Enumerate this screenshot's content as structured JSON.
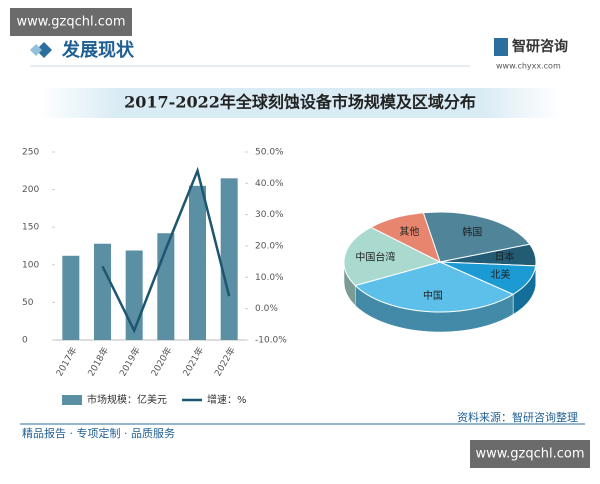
{
  "watermarks": [
    "www.gzqchl.com",
    "www.gzqchl.com"
  ],
  "header": {
    "section": "发展现状",
    "logo": "智研咨询",
    "url": "www.chyxx.com"
  },
  "title": "2017-2022年全球刻蚀设备市场规模及区域分布",
  "chart_data": [
    {
      "type": "bar",
      "categories": [
        "2017年",
        "2018年",
        "2019年",
        "2020年",
        "2021年",
        "2022年"
      ],
      "series": [
        {
          "name": "市场规模：亿美元",
          "color": "#5b8fa3",
          "values": [
            112,
            128,
            119,
            142,
            205,
            215
          ]
        },
        {
          "name": "增速：%",
          "color": "#1e5670",
          "type": "line",
          "axis": "y2",
          "values": [
            null,
            13.5,
            -7,
            19,
            44,
            4
          ]
        }
      ],
      "ylim": [
        0,
        250
      ],
      "yticks": [
        0,
        50,
        100,
        150,
        200,
        250
      ],
      "y2lim": [
        -10,
        50
      ],
      "y2ticks": [
        {
          "value": -10,
          "label": "-10.0%"
        },
        {
          "value": 0,
          "label": "0.0%"
        },
        {
          "value": 10,
          "label": "10.0%"
        },
        {
          "value": 20,
          "label": "20.0%"
        },
        {
          "value": 30,
          "label": "30.0%"
        },
        {
          "value": 40,
          "label": "40.0%"
        },
        {
          "value": 50,
          "label": "50.0%"
        }
      ]
    },
    {
      "type": "pie",
      "categories": [
        "韩国",
        "日本",
        "北美",
        "中国",
        "中国台湾",
        "其他"
      ],
      "values": [
        22,
        7,
        10,
        31,
        20,
        10
      ],
      "colors": [
        "#4f8499",
        "#225c74",
        "#1b9ad4",
        "#5cc0ea",
        "#a9d9cf",
        "#e8856f"
      ]
    }
  ],
  "footer": {
    "slogan": "精品报告 · 专项定制 · 品质服务",
    "source": "资料来源：智研咨询整理"
  }
}
